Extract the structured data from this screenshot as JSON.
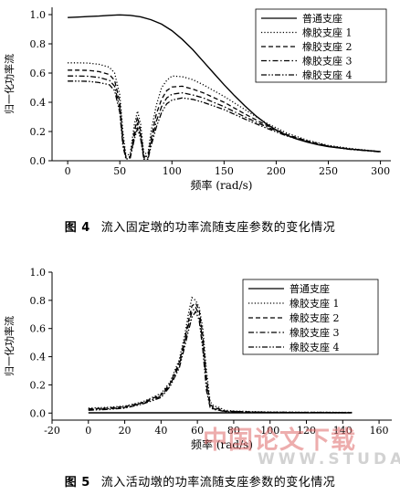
{
  "chart_data": [
    {
      "type": "line",
      "xlabel": "频率 (rad/s)",
      "ylabel": "归一化功率流",
      "xlim": [
        -15,
        310
      ],
      "ylim": [
        0,
        1.05
      ],
      "x_ticks": [
        0,
        50,
        100,
        150,
        200,
        250,
        300
      ],
      "y_ticks": [
        0.0,
        0.2,
        0.4,
        0.6,
        0.8,
        1.0
      ],
      "x_tick_labels": [
        "0",
        "50",
        "100",
        "150",
        "200",
        "250",
        "300"
      ],
      "y_tick_labels": [
        "0.0",
        "0.2",
        "0.4",
        "0.6",
        "0.8",
        "1.0"
      ],
      "legend_position": "top-right",
      "series": [
        {
          "name": "普通支座",
          "style": "solid",
          "x": [
            0,
            10,
            20,
            30,
            40,
            50,
            60,
            70,
            80,
            90,
            100,
            110,
            120,
            130,
            140,
            150,
            160,
            170,
            180,
            190,
            200,
            210,
            220,
            230,
            240,
            250,
            260,
            270,
            280,
            290,
            300
          ],
          "y": [
            0.98,
            0.983,
            0.987,
            0.99,
            0.995,
            0.998,
            0.995,
            0.985,
            0.965,
            0.935,
            0.89,
            0.83,
            0.76,
            0.68,
            0.6,
            0.52,
            0.445,
            0.375,
            0.31,
            0.255,
            0.21,
            0.175,
            0.148,
            0.127,
            0.11,
            0.097,
            0.088,
            0.08,
            0.074,
            0.068,
            0.063
          ]
        },
        {
          "name": "橡胶支座 1",
          "style": "dotted",
          "x": [
            0,
            10,
            20,
            30,
            40,
            45,
            50,
            53,
            56,
            60,
            64,
            67,
            70,
            73,
            77,
            80,
            85,
            90,
            95,
            100,
            110,
            120,
            130,
            150,
            170,
            190,
            210,
            230,
            250,
            270,
            300
          ],
          "y": [
            0.67,
            0.67,
            0.668,
            0.66,
            0.64,
            0.6,
            0.45,
            0.2,
            0.03,
            0.05,
            0.25,
            0.34,
            0.25,
            0.05,
            0.05,
            0.2,
            0.38,
            0.5,
            0.55,
            0.58,
            0.575,
            0.555,
            0.52,
            0.44,
            0.35,
            0.26,
            0.19,
            0.14,
            0.105,
            0.085,
            0.062
          ]
        },
        {
          "name": "橡胶支座 2",
          "style": "dashed",
          "x": [
            0,
            10,
            20,
            30,
            40,
            45,
            50,
            53,
            56,
            60,
            64,
            67,
            70,
            73,
            77,
            80,
            85,
            90,
            95,
            100,
            110,
            120,
            130,
            150,
            170,
            190,
            210,
            230,
            250,
            270,
            300
          ],
          "y": [
            0.62,
            0.62,
            0.618,
            0.61,
            0.59,
            0.55,
            0.4,
            0.15,
            0.02,
            0.03,
            0.2,
            0.3,
            0.2,
            0.03,
            0.03,
            0.15,
            0.32,
            0.42,
            0.48,
            0.505,
            0.51,
            0.49,
            0.465,
            0.4,
            0.32,
            0.245,
            0.18,
            0.135,
            0.1,
            0.082,
            0.062
          ]
        },
        {
          "name": "橡胶支座 3",
          "style": "dashdot",
          "x": [
            0,
            10,
            20,
            30,
            40,
            45,
            50,
            53,
            56,
            60,
            64,
            67,
            70,
            73,
            77,
            80,
            85,
            90,
            95,
            100,
            110,
            120,
            130,
            150,
            170,
            190,
            210,
            230,
            250,
            270,
            300
          ],
          "y": [
            0.58,
            0.58,
            0.578,
            0.57,
            0.55,
            0.51,
            0.36,
            0.12,
            0.02,
            0.02,
            0.17,
            0.26,
            0.17,
            0.02,
            0.02,
            0.12,
            0.27,
            0.37,
            0.43,
            0.455,
            0.465,
            0.45,
            0.43,
            0.37,
            0.3,
            0.235,
            0.175,
            0.13,
            0.1,
            0.08,
            0.061
          ]
        },
        {
          "name": "橡胶支座 4",
          "style": "dashdotdot",
          "x": [
            0,
            10,
            20,
            30,
            40,
            45,
            50,
            53,
            56,
            60,
            64,
            67,
            70,
            73,
            77,
            80,
            85,
            90,
            95,
            100,
            110,
            120,
            130,
            150,
            170,
            190,
            210,
            230,
            250,
            270,
            300
          ],
          "y": [
            0.545,
            0.545,
            0.543,
            0.535,
            0.52,
            0.48,
            0.33,
            0.1,
            0.01,
            0.02,
            0.15,
            0.22,
            0.15,
            0.01,
            0.01,
            0.1,
            0.23,
            0.33,
            0.39,
            0.415,
            0.43,
            0.42,
            0.4,
            0.35,
            0.285,
            0.225,
            0.17,
            0.128,
            0.098,
            0.078,
            0.06
          ]
        }
      ]
    },
    {
      "type": "line",
      "xlabel": "频率 (rad/s)",
      "ylabel": "归一化功率流",
      "xlim": [
        -20,
        167
      ],
      "ylim": [
        -0.05,
        1.0
      ],
      "x_ticks": [
        -20,
        0,
        20,
        40,
        60,
        80,
        100,
        120,
        140,
        160
      ],
      "y_ticks": [
        0.0,
        0.2,
        0.4,
        0.6,
        0.8,
        1.0
      ],
      "x_tick_labels": [
        "-20",
        "0",
        "20",
        "40",
        "60",
        "80",
        "100",
        "120",
        "140",
        "160"
      ],
      "y_tick_labels": [
        "0.0",
        "0.2",
        "0.4",
        "0.6",
        "0.8",
        "1.0"
      ],
      "legend_position": "top-right",
      "series": [
        {
          "name": "普通支座",
          "style": "solid",
          "x": [
            0,
            20,
            40,
            60,
            80,
            100,
            120,
            145
          ],
          "y": [
            0.002,
            0.002,
            0.002,
            0.002,
            0.002,
            0.002,
            0.002,
            0.002
          ]
        },
        {
          "name": "橡胶支座 1",
          "style": "dotted",
          "x": [
            0,
            10,
            20,
            30,
            40,
            45,
            50,
            53,
            55,
            57,
            59,
            61,
            63,
            65,
            67,
            69,
            72,
            75,
            80,
            90,
            100,
            120,
            145
          ],
          "y": [
            0.035,
            0.04,
            0.05,
            0.08,
            0.14,
            0.22,
            0.38,
            0.55,
            0.7,
            0.82,
            0.8,
            0.75,
            0.6,
            0.3,
            0.08,
            0.05,
            0.04,
            0.02,
            0.015,
            0.01,
            0.008,
            0.006,
            0.005
          ]
        },
        {
          "name": "橡胶支座 2",
          "style": "dashed",
          "x": [
            0,
            10,
            20,
            30,
            40,
            45,
            50,
            53,
            55,
            57,
            59,
            61,
            63,
            65,
            67,
            69,
            72,
            75,
            80,
            90,
            100,
            120,
            145
          ],
          "y": [
            0.03,
            0.035,
            0.045,
            0.075,
            0.13,
            0.21,
            0.36,
            0.52,
            0.65,
            0.76,
            0.78,
            0.73,
            0.55,
            0.25,
            0.06,
            0.04,
            0.03,
            0.015,
            0.012,
            0.008,
            0.006,
            0.005,
            0.004
          ]
        },
        {
          "name": "橡胶支座 3",
          "style": "dashdot",
          "x": [
            0,
            10,
            20,
            30,
            40,
            45,
            50,
            53,
            55,
            57,
            59,
            61,
            63,
            65,
            67,
            69,
            72,
            75,
            80,
            90,
            100,
            120,
            145
          ],
          "y": [
            0.025,
            0.03,
            0.04,
            0.07,
            0.12,
            0.2,
            0.34,
            0.5,
            0.62,
            0.72,
            0.75,
            0.7,
            0.5,
            0.2,
            0.05,
            0.03,
            0.025,
            0.012,
            0.01,
            0.007,
            0.005,
            0.004,
            0.003
          ]
        },
        {
          "name": "橡胶支座 4",
          "style": "dashdotdot",
          "x": [
            0,
            10,
            20,
            30,
            40,
            45,
            50,
            53,
            55,
            57,
            59,
            61,
            63,
            65,
            67,
            69,
            72,
            75,
            80,
            90,
            100,
            120,
            145
          ],
          "y": [
            0.02,
            0.025,
            0.035,
            0.065,
            0.11,
            0.19,
            0.32,
            0.47,
            0.58,
            0.68,
            0.72,
            0.66,
            0.45,
            0.16,
            0.04,
            0.025,
            0.02,
            0.01,
            0.008,
            0.006,
            0.004,
            0.003,
            0.002
          ]
        }
      ]
    }
  ],
  "captions": [
    {
      "num": "图 4",
      "text": "流入固定墩的功率流随支座参数的变化情况"
    },
    {
      "num": "图 5",
      "text": "流入活动墩的功率流随支座参数的变化情况"
    }
  ],
  "watermark": {
    "text": "中国论文下载",
    "url_text": "WWW.STUDA."
  }
}
